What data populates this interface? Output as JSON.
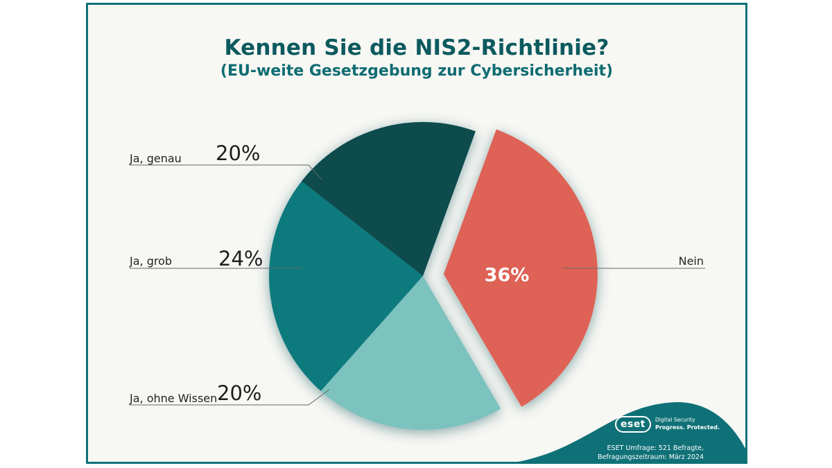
{
  "title": "Kennen Sie die NIS2-Richtlinie?",
  "subtitle": "(EU-weite Gesetzgebung zur Cybersicherheit)",
  "chart_data": {
    "type": "pie",
    "title": "Kennen Sie die NIS2-Richtlinie?",
    "subtitle": "(EU-weite Gesetzgebung zur Cybersicherheit)",
    "unit": "%",
    "categories": [
      "Nein",
      "Ja, ohne Wissen",
      "Ja, grob",
      "Ja, genau"
    ],
    "values": [
      36,
      20,
      24,
      20
    ],
    "labels": [
      "36%",
      "20%",
      "24%",
      "20%"
    ],
    "colors": [
      "#de6255",
      "#7cc2be",
      "#117a7e",
      "#0a4b4e"
    ],
    "exploded": "Nein"
  },
  "brand": {
    "logo_text": "eset",
    "tagline_line1": "Digital Security",
    "tagline_line2": "Progress. Protected.",
    "source_line1": "ESET Umfrage: 521 Befragte,",
    "source_line2": "Befragungszeitraum: März 2024",
    "accent_color": "#0f7177"
  }
}
